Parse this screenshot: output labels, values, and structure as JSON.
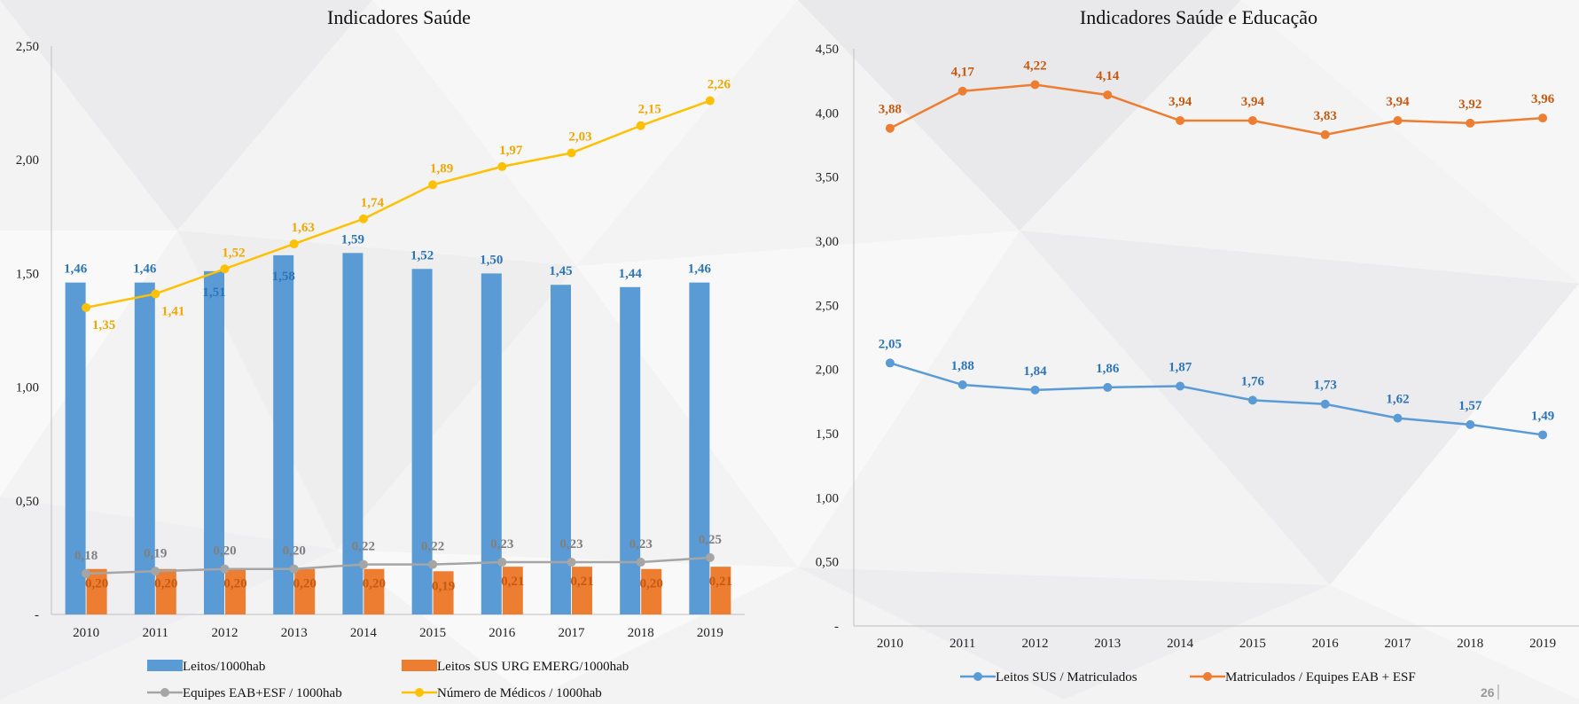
{
  "page_number": "26",
  "colors": {
    "blue": "#5b9bd5",
    "blue_label": "#2e75b6",
    "orange": "#ed7d31",
    "orange_label": "#c55a11",
    "gray": "#a5a5a5",
    "gray_label": "#7f7f7f",
    "yellow": "#ffc000",
    "yellow_label": "#f0a800",
    "axis": "#bfbfbf"
  },
  "chart_data": [
    {
      "id": "left",
      "type": "bar+line",
      "title": "Indicadores Saúde",
      "categories": [
        "2010",
        "2011",
        "2012",
        "2013",
        "2014",
        "2015",
        "2016",
        "2017",
        "2018",
        "2019"
      ],
      "ylim": [
        0,
        2.5
      ],
      "yticks": [
        0,
        0.5,
        1.0,
        1.5,
        2.0,
        2.5
      ],
      "ytick_labels": [
        "-",
        "0,50",
        "1,00",
        "1,50",
        "2,00",
        "2,50"
      ],
      "legend_position": "bottom",
      "series": [
        {
          "name": "Leitos/1000hab",
          "kind": "bar",
          "color": "#5b9bd5",
          "label_color": "#2e75b6",
          "values": [
            1.46,
            1.46,
            1.51,
            1.58,
            1.59,
            1.52,
            1.5,
            1.45,
            1.44,
            1.46
          ],
          "labels": [
            "1,46",
            "1,46",
            "1,51",
            "1,58",
            "1,59",
            "1,52",
            "1,50",
            "1,45",
            "1,44",
            "1,46"
          ]
        },
        {
          "name": "Leitos SUS URG EMERG/1000hab",
          "kind": "bar",
          "color": "#ed7d31",
          "label_color": "#c55a11",
          "values": [
            0.2,
            0.2,
            0.2,
            0.2,
            0.2,
            0.19,
            0.21,
            0.21,
            0.2,
            0.21
          ],
          "labels": [
            "0,20",
            "0,20",
            "0,20",
            "0,20",
            "0,20",
            "0,19",
            "0,21",
            "0,21",
            "0,20",
            "0,21"
          ]
        },
        {
          "name": "Equipes EAB+ESF / 1000hab",
          "kind": "line",
          "color": "#a5a5a5",
          "label_color": "#7f7f7f",
          "values": [
            0.18,
            0.19,
            0.2,
            0.2,
            0.22,
            0.22,
            0.23,
            0.23,
            0.23,
            0.25
          ],
          "labels": [
            "0,18",
            "0,19",
            "0,20",
            "0,20",
            "0,22",
            "0,22",
            "0,23",
            "0,23",
            "0,23",
            "0,25"
          ]
        },
        {
          "name": "Número de Médicos / 1000hab",
          "kind": "line",
          "color": "#ffc000",
          "label_color": "#f0a800",
          "values": [
            1.35,
            1.41,
            1.52,
            1.63,
            1.74,
            1.89,
            1.97,
            2.03,
            2.15,
            2.26
          ],
          "labels": [
            "1,35",
            "1,41",
            "1,52",
            "1,63",
            "1,74",
            "1,89",
            "1,97",
            "2,03",
            "2,15",
            "2,26"
          ]
        }
      ]
    },
    {
      "id": "right",
      "type": "line",
      "title": "Indicadores Saúde e Educação",
      "categories": [
        "2010",
        "2011",
        "2012",
        "2013",
        "2014",
        "2015",
        "2016",
        "2017",
        "2018",
        "2019"
      ],
      "ylim": [
        0,
        4.5
      ],
      "yticks": [
        0,
        0.5,
        1.0,
        1.5,
        2.0,
        2.5,
        3.0,
        3.5,
        4.0,
        4.5
      ],
      "ytick_labels": [
        "-",
        "0,50",
        "1,00",
        "1,50",
        "2,00",
        "2,50",
        "3,00",
        "3,50",
        "4,00",
        "4,50"
      ],
      "legend_position": "bottom",
      "series": [
        {
          "name": "Leitos SUS / Matriculados",
          "kind": "line",
          "color": "#5b9bd5",
          "label_color": "#2e75b6",
          "values": [
            2.05,
            1.88,
            1.84,
            1.86,
            1.87,
            1.76,
            1.73,
            1.62,
            1.57,
            1.49
          ],
          "labels": [
            "2,05",
            "1,88",
            "1,84",
            "1,86",
            "1,87",
            "1,76",
            "1,73",
            "1,62",
            "1,57",
            "1,49"
          ]
        },
        {
          "name": "Matriculados / Equipes EAB + ESF",
          "kind": "line",
          "color": "#ed7d31",
          "label_color": "#c55a11",
          "values": [
            3.88,
            4.17,
            4.22,
            4.14,
            3.94,
            3.94,
            3.83,
            3.94,
            3.92,
            3.96
          ],
          "labels": [
            "3,88",
            "4,17",
            "4,22",
            "4,14",
            "3,94",
            "3,94",
            "3,83",
            "3,94",
            "3,92",
            "3,96"
          ]
        }
      ]
    }
  ]
}
